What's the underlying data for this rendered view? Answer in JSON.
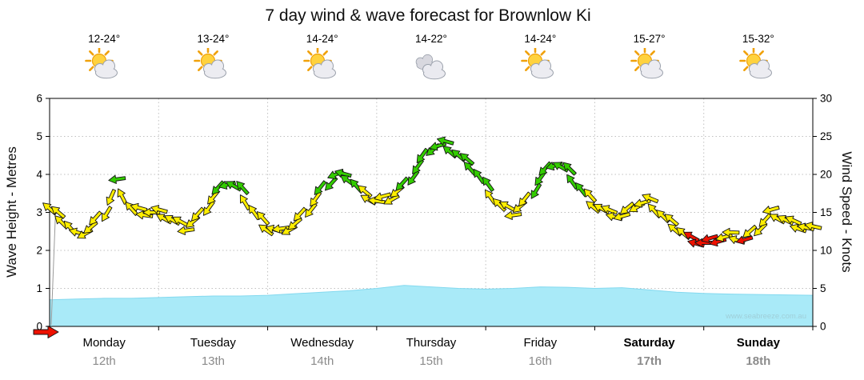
{
  "watermark": "www.seabreeze.com.au",
  "days": [
    {
      "name": "Monday",
      "date": "12th",
      "temp": "12-24°",
      "icon": "sun-cloud",
      "bold": false
    },
    {
      "name": "Tuesday",
      "date": "13th",
      "temp": "13-24°",
      "icon": "sun-cloud",
      "bold": false
    },
    {
      "name": "Wednesday",
      "date": "14th",
      "temp": "14-24°",
      "icon": "sun-cloud",
      "bold": false
    },
    {
      "name": "Thursday",
      "date": "15th",
      "temp": "14-22°",
      "icon": "clouds",
      "bold": false
    },
    {
      "name": "Friday",
      "date": "16th",
      "temp": "14-24°",
      "icon": "sun-cloud",
      "bold": false
    },
    {
      "name": "Saturday",
      "date": "17th",
      "temp": "15-27°",
      "icon": "sun-cloud",
      "bold": true
    },
    {
      "name": "Sunday",
      "date": "18th",
      "temp": "15-32°",
      "icon": "sun-cloud",
      "bold": true
    }
  ],
  "chart_data": {
    "type": "line",
    "title": "7 day wind & wave forecast for Brownlow Ki",
    "ylabel_left": "Wave Height - Metres",
    "ylabel_right": "Wind Speed - Knots",
    "ylim_left": [
      0,
      6
    ],
    "ylim_right": [
      0,
      30
    ],
    "yticks_left": [
      0,
      1,
      2,
      3,
      4,
      5,
      6
    ],
    "yticks_right": [
      0,
      5,
      10,
      15,
      20,
      25,
      30
    ],
    "x_range_days": [
      0,
      7
    ],
    "grid": true,
    "categories": [
      "Monday 12th",
      "Tuesday 13th",
      "Wednesday 14th",
      "Thursday 15th",
      "Friday 16th",
      "Saturday 17th",
      "Sunday 18th"
    ],
    "series": [
      {
        "name": "Wind Speed",
        "unit": "knots",
        "axis": "right",
        "style": "wind-arrows",
        "x_step_days": 0.125,
        "values": [
          15.5,
          14,
          12,
          13,
          15,
          19,
          15.5,
          15,
          15,
          14,
          13,
          14.5,
          17,
          19,
          18,
          15,
          13,
          12.5,
          13.5,
          15.5,
          18,
          20,
          19.5,
          17.5,
          16.5,
          17,
          18.5,
          21,
          23.5,
          24,
          22.5,
          21,
          18.5,
          16,
          15,
          16.5,
          19.5,
          21.5,
          20.5,
          18,
          16,
          15,
          14.5,
          16,
          16.5,
          14.5,
          13,
          11.5,
          11,
          11.5,
          12,
          11.4,
          13,
          15,
          14,
          13.2,
          12.8
        ]
      },
      {
        "name": "Wave Height",
        "unit": "metres",
        "axis": "left",
        "style": "area",
        "x_step_days": 0.25,
        "values": [
          0.7,
          0.72,
          0.74,
          0.74,
          0.76,
          0.78,
          0.8,
          0.8,
          0.82,
          0.86,
          0.9,
          0.94,
          1.0,
          1.08,
          1.04,
          1.0,
          0.98,
          1.0,
          1.04,
          1.03,
          1.0,
          1.02,
          0.96,
          0.9,
          0.87,
          0.85,
          0.84,
          0.83,
          0.82
        ]
      }
    ],
    "wind_colors": {
      "yellow": "#ffee00",
      "green": "#33cc00",
      "red": "#ee1100",
      "green_min_knots": 18,
      "red_max_knots": 11.6
    },
    "wave_fill": "#a9eaf8",
    "start_marker_color": "#ee1100"
  }
}
